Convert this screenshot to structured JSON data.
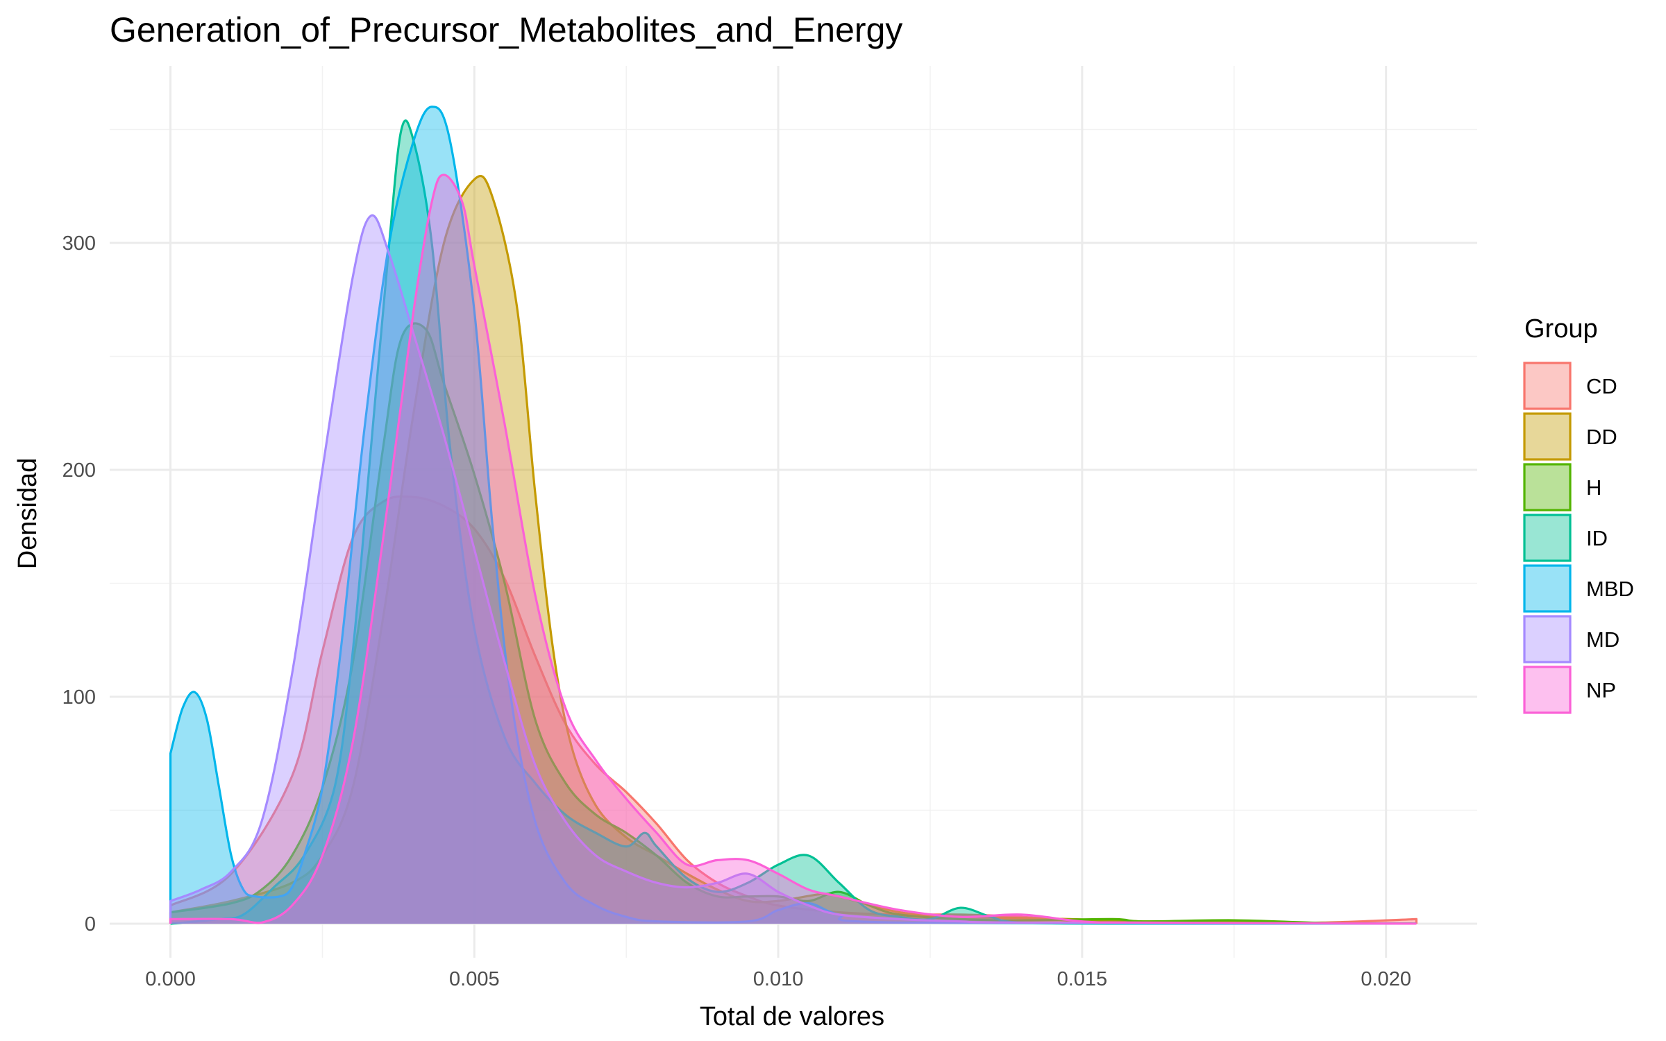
{
  "chart_data": {
    "type": "area",
    "subtype": "density",
    "title": "Generation_of_Precursor_Metabolites_and_Energy",
    "xlabel": "Total de valores",
    "ylabel": "Densidad",
    "xlim": [
      -0.001,
      0.0215
    ],
    "ylim": [
      -15,
      378
    ],
    "xticks": [
      0.0,
      0.005,
      0.01,
      0.015,
      0.02
    ],
    "xtick_labels": [
      "0.000",
      "0.005",
      "0.010",
      "0.015",
      "0.020"
    ],
    "yticks": [
      0,
      100,
      200,
      300
    ],
    "ytick_labels": [
      "0",
      "100",
      "200",
      "300"
    ],
    "grid": true,
    "fill_opacity": 0.4,
    "legend": {
      "title": "Group",
      "position": "right"
    },
    "series": [
      {
        "name": "CD",
        "color": "#F8766D",
        "points": [
          [
            0,
            8
          ],
          [
            0.001,
            22
          ],
          [
            0.002,
            65
          ],
          [
            0.0025,
            120
          ],
          [
            0.003,
            170
          ],
          [
            0.0035,
            186
          ],
          [
            0.004,
            188
          ],
          [
            0.0045,
            184
          ],
          [
            0.005,
            174
          ],
          [
            0.0055,
            152
          ],
          [
            0.006,
            118
          ],
          [
            0.0065,
            88
          ],
          [
            0.007,
            70
          ],
          [
            0.0075,
            58
          ],
          [
            0.008,
            44
          ],
          [
            0.0085,
            28
          ],
          [
            0.009,
            18
          ],
          [
            0.0095,
            12
          ],
          [
            0.01,
            8
          ],
          [
            0.011,
            5
          ],
          [
            0.012,
            4
          ],
          [
            0.013,
            4
          ],
          [
            0.014,
            3
          ],
          [
            0.015,
            1
          ],
          [
            0.016,
            0.5
          ],
          [
            0.018,
            0.5
          ],
          [
            0.019,
            0.5
          ],
          [
            0.0205,
            2
          ]
        ]
      },
      {
        "name": "DD",
        "color": "#C49A00",
        "points": [
          [
            0,
            5
          ],
          [
            0.001,
            10
          ],
          [
            0.002,
            18
          ],
          [
            0.0025,
            30
          ],
          [
            0.003,
            60
          ],
          [
            0.0035,
            135
          ],
          [
            0.004,
            225
          ],
          [
            0.0045,
            300
          ],
          [
            0.005,
            328
          ],
          [
            0.0053,
            320
          ],
          [
            0.0057,
            272
          ],
          [
            0.006,
            190
          ],
          [
            0.0063,
            120
          ],
          [
            0.0066,
            78
          ],
          [
            0.007,
            52
          ],
          [
            0.0075,
            38
          ],
          [
            0.008,
            30
          ],
          [
            0.0085,
            22
          ],
          [
            0.009,
            15
          ],
          [
            0.0095,
            10
          ],
          [
            0.01,
            10
          ],
          [
            0.0107,
            13
          ],
          [
            0.011,
            12
          ],
          [
            0.012,
            5
          ],
          [
            0.013,
            3
          ],
          [
            0.014,
            2.5
          ],
          [
            0.0148,
            2
          ],
          [
            0.016,
            1
          ],
          [
            0.018,
            0.5
          ],
          [
            0.0205,
            0
          ]
        ]
      },
      {
        "name": "H",
        "color": "#53B400",
        "points": [
          [
            0,
            5
          ],
          [
            0.001,
            9
          ],
          [
            0.0015,
            15
          ],
          [
            0.002,
            30
          ],
          [
            0.0025,
            60
          ],
          [
            0.003,
            115
          ],
          [
            0.0035,
            210
          ],
          [
            0.0038,
            258
          ],
          [
            0.0042,
            262
          ],
          [
            0.0045,
            238
          ],
          [
            0.005,
            198
          ],
          [
            0.0055,
            150
          ],
          [
            0.006,
            90
          ],
          [
            0.0065,
            62
          ],
          [
            0.007,
            48
          ],
          [
            0.0075,
            40
          ],
          [
            0.008,
            30
          ],
          [
            0.0085,
            18
          ],
          [
            0.009,
            12
          ],
          [
            0.0095,
            12
          ],
          [
            0.01,
            12
          ],
          [
            0.0105,
            10
          ],
          [
            0.011,
            14
          ],
          [
            0.0115,
            8
          ],
          [
            0.012,
            4
          ],
          [
            0.013,
            2
          ],
          [
            0.014,
            1.5
          ],
          [
            0.0155,
            2
          ],
          [
            0.016,
            1
          ],
          [
            0.0175,
            1.5
          ],
          [
            0.019,
            0.3
          ],
          [
            0.0205,
            0
          ]
        ]
      },
      {
        "name": "ID",
        "color": "#00C094",
        "points": [
          [
            0,
            0
          ],
          [
            0.0008,
            2
          ],
          [
            0.0012,
            4
          ],
          [
            0.0017,
            16
          ],
          [
            0.0022,
            30
          ],
          [
            0.0027,
            60
          ],
          [
            0.003,
            120
          ],
          [
            0.0033,
            210
          ],
          [
            0.0036,
            300
          ],
          [
            0.0038,
            350
          ],
          [
            0.004,
            345
          ],
          [
            0.0043,
            300
          ],
          [
            0.0046,
            210
          ],
          [
            0.005,
            130
          ],
          [
            0.0055,
            82
          ],
          [
            0.006,
            62
          ],
          [
            0.0065,
            48
          ],
          [
            0.007,
            40
          ],
          [
            0.0075,
            34
          ],
          [
            0.0078,
            40
          ],
          [
            0.008,
            34
          ],
          [
            0.0085,
            20
          ],
          [
            0.009,
            14
          ],
          [
            0.0095,
            18
          ],
          [
            0.01,
            26
          ],
          [
            0.0105,
            30
          ],
          [
            0.011,
            18
          ],
          [
            0.0115,
            6
          ],
          [
            0.012,
            3
          ],
          [
            0.0125,
            2
          ],
          [
            0.013,
            7
          ],
          [
            0.0135,
            3
          ],
          [
            0.014,
            0.5
          ],
          [
            0.016,
            0
          ],
          [
            0.0205,
            0
          ]
        ]
      },
      {
        "name": "MBD",
        "color": "#00B6EB",
        "points": [
          [
            0,
            75
          ],
          [
            0.0002,
            95
          ],
          [
            0.0004,
            102
          ],
          [
            0.0006,
            90
          ],
          [
            0.0008,
            60
          ],
          [
            0.001,
            30
          ],
          [
            0.0012,
            15
          ],
          [
            0.0014,
            12
          ],
          [
            0.0018,
            12
          ],
          [
            0.002,
            16
          ],
          [
            0.0022,
            30
          ],
          [
            0.0025,
            60
          ],
          [
            0.0028,
            120
          ],
          [
            0.0032,
            220
          ],
          [
            0.0036,
            300
          ],
          [
            0.004,
            345
          ],
          [
            0.0043,
            360
          ],
          [
            0.0046,
            345
          ],
          [
            0.005,
            270
          ],
          [
            0.0053,
            175
          ],
          [
            0.0056,
            100
          ],
          [
            0.006,
            45
          ],
          [
            0.0065,
            18
          ],
          [
            0.007,
            8
          ],
          [
            0.0075,
            3
          ],
          [
            0.008,
            1
          ],
          [
            0.0095,
            1
          ],
          [
            0.01,
            6
          ],
          [
            0.0105,
            9
          ],
          [
            0.011,
            4
          ],
          [
            0.012,
            0.5
          ],
          [
            0.0205,
            0
          ]
        ]
      },
      {
        "name": "MD",
        "color": "#A58AFF",
        "points": [
          [
            0,
            10
          ],
          [
            0.0005,
            15
          ],
          [
            0.001,
            23
          ],
          [
            0.0015,
            45
          ],
          [
            0.002,
            110
          ],
          [
            0.0025,
            200
          ],
          [
            0.003,
            285
          ],
          [
            0.0033,
            312
          ],
          [
            0.0036,
            295
          ],
          [
            0.004,
            260
          ],
          [
            0.0045,
            215
          ],
          [
            0.005,
            165
          ],
          [
            0.0055,
            115
          ],
          [
            0.006,
            70
          ],
          [
            0.0065,
            45
          ],
          [
            0.007,
            30
          ],
          [
            0.0075,
            23
          ],
          [
            0.008,
            18
          ],
          [
            0.0085,
            16
          ],
          [
            0.009,
            18
          ],
          [
            0.0095,
            22
          ],
          [
            0.01,
            14
          ],
          [
            0.0105,
            8
          ],
          [
            0.011,
            4
          ],
          [
            0.012,
            2
          ],
          [
            0.013,
            1
          ],
          [
            0.014,
            0.5
          ],
          [
            0.0205,
            0
          ]
        ]
      },
      {
        "name": "NP",
        "color": "#FB61D7",
        "points": [
          [
            0,
            2
          ],
          [
            0.001,
            2
          ],
          [
            0.0015,
            0.5
          ],
          [
            0.002,
            8
          ],
          [
            0.0025,
            30
          ],
          [
            0.003,
            80
          ],
          [
            0.0035,
            170
          ],
          [
            0.004,
            270
          ],
          [
            0.0043,
            318
          ],
          [
            0.0045,
            330
          ],
          [
            0.0048,
            318
          ],
          [
            0.005,
            290
          ],
          [
            0.0055,
            220
          ],
          [
            0.006,
            145
          ],
          [
            0.0065,
            95
          ],
          [
            0.007,
            72
          ],
          [
            0.0075,
            55
          ],
          [
            0.008,
            40
          ],
          [
            0.0085,
            26
          ],
          [
            0.009,
            28
          ],
          [
            0.0095,
            28
          ],
          [
            0.01,
            22
          ],
          [
            0.0105,
            15
          ],
          [
            0.011,
            12
          ],
          [
            0.012,
            6
          ],
          [
            0.013,
            3
          ],
          [
            0.014,
            4
          ],
          [
            0.015,
            1
          ],
          [
            0.016,
            0.5
          ],
          [
            0.0205,
            0
          ]
        ]
      }
    ]
  }
}
